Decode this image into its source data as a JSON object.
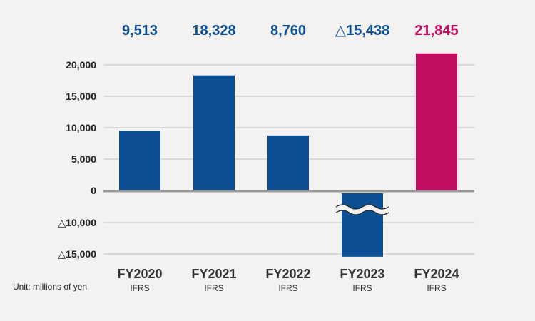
{
  "unit_text": "Unit: millions of yen",
  "colors": {
    "positive": "#0c4f94",
    "highlight": "#c20c62",
    "grid": "#bdbdbd",
    "zero_line": "#999999",
    "background": "#f3f2f0"
  },
  "chart_data": {
    "type": "bar",
    "categories": [
      "FY2020",
      "FY2021",
      "FY2022",
      "FY2023",
      "FY2024"
    ],
    "standards": [
      "IFRS",
      "IFRS",
      "IFRS",
      "IFRS",
      "IFRS"
    ],
    "values": [
      9513,
      18328,
      8760,
      -15438,
      21845
    ],
    "value_labels": [
      "9,513",
      "18,328",
      "8,760",
      "△15,438",
      "21,845"
    ],
    "highlight_index": 4,
    "axis_break": true,
    "y_ticks": [
      {
        "value": 20000,
        "label": "20,000"
      },
      {
        "value": 15000,
        "label": "15,000"
      },
      {
        "value": 10000,
        "label": "10,000"
      },
      {
        "value": 5000,
        "label": "5,000"
      },
      {
        "value": 0,
        "label": "0"
      },
      {
        "value": -10000,
        "label": "△10,000"
      },
      {
        "value": -15000,
        "label": "△15,000"
      }
    ],
    "grid": true,
    "title": "",
    "xlabel": "",
    "ylabel": ""
  }
}
